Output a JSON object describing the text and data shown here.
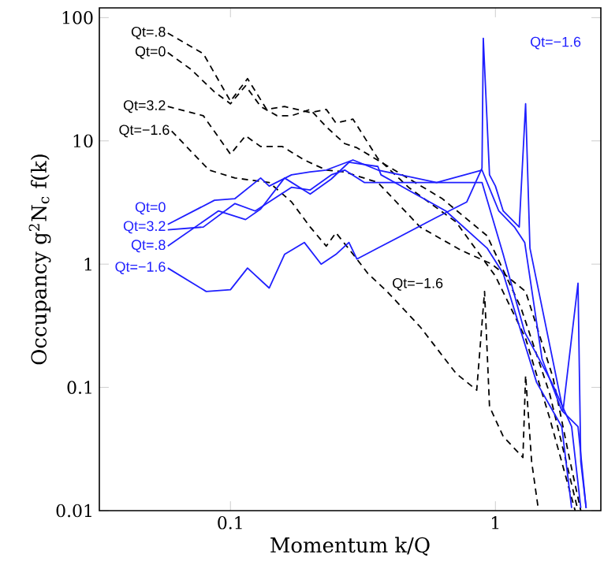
{
  "chart_data": {
    "type": "line",
    "xlabel": "Momentum k/Q",
    "ylabel": "Occupancy g$^{2}$N$_{c}$ f(k)",
    "log": "xy",
    "xlim": [
      0.032,
      2.5
    ],
    "ylim": [
      0.01,
      120
    ],
    "xticks": [
      0.1,
      1
    ],
    "yticks": [
      0.01,
      0.1,
      1,
      10,
      100
    ],
    "series": [
      {
        "name": "Qt=.8",
        "color": "#000000",
        "line_style": "dashed",
        "x": [
          0.058,
          0.079,
          0.1,
          0.116,
          0.137,
          0.16,
          0.2,
          0.23,
          0.25,
          0.29,
          0.36,
          0.47,
          0.71,
          1.0,
          1.3,
          1.6,
          2.0
        ],
        "values": [
          75,
          51,
          21,
          32,
          18,
          19,
          17,
          18,
          14,
          15,
          7.2,
          4.2,
          2.2,
          0.8,
          0.25,
          0.057,
          0.01
        ]
      },
      {
        "name": "Qt=0",
        "color": "#000000",
        "line_style": "dashed",
        "x": [
          0.058,
          0.071,
          0.087,
          0.1,
          0.114,
          0.13,
          0.15,
          0.17,
          0.2,
          0.23,
          0.27,
          0.3,
          0.63,
          0.93,
          1.25,
          1.6,
          2.05
        ],
        "values": [
          52,
          38,
          25,
          20,
          28,
          19,
          16,
          16,
          18,
          13,
          9.5,
          8.8,
          3.4,
          1.7,
          0.44,
          0.09,
          0.01
        ]
      },
      {
        "name": "Qt=3.2",
        "color": "#000000",
        "line_style": "dashed",
        "x": [
          0.058,
          0.079,
          0.1,
          0.114,
          0.13,
          0.157,
          0.19,
          0.23,
          0.27,
          0.36,
          0.52,
          0.74,
          0.97,
          1.3,
          1.65,
          1.9,
          2.1
        ],
        "values": [
          19,
          16,
          7.8,
          11,
          9,
          9,
          7,
          5.8,
          5.6,
          4.6,
          2.0,
          1.3,
          1.0,
          0.6,
          0.12,
          0.027,
          0.01
        ]
      },
      {
        "name": "Qt=−1.6",
        "color": "#000000",
        "line_style": "dashed",
        "x": [
          0.06,
          0.083,
          0.104,
          0.14,
          0.17,
          0.2,
          0.23,
          0.25,
          0.3,
          0.33,
          0.39,
          0.52,
          0.71,
          0.85,
          0.91,
          0.95,
          1.07,
          1.27,
          1.3,
          1.37,
          1.45
        ],
        "values": [
          12,
          5.8,
          5,
          4.6,
          3.2,
          2.0,
          1.4,
          1.8,
          1.1,
          0.84,
          0.6,
          0.31,
          0.13,
          0.095,
          0.6,
          0.07,
          0.04,
          0.027,
          0.125,
          0.025,
          0.0105
        ]
      },
      {
        "name": "Qt=0",
        "color": "#1f1fff",
        "line_style": "solid",
        "x": [
          0.058,
          0.087,
          0.104,
          0.13,
          0.14,
          0.17,
          0.2,
          0.23,
          0.29,
          0.36,
          0.6,
          0.89,
          1.03,
          1.18,
          1.29,
          1.5,
          1.78,
          2.05,
          2.2
        ],
        "values": [
          2.1,
          3.3,
          3.4,
          5,
          4.3,
          5.3,
          5.6,
          5.8,
          7,
          5.8,
          4.6,
          5.8,
          2.7,
          2.0,
          1.5,
          0.17,
          0.065,
          0.048,
          0.0105
        ]
      },
      {
        "name": "Qt=3.2",
        "color": "#1f1fff",
        "line_style": "solid",
        "x": [
          0.058,
          0.079,
          0.104,
          0.124,
          0.17,
          0.2,
          0.24,
          0.27,
          0.32,
          0.36,
          0.89,
          1.07,
          1.29,
          1.63,
          1.94,
          2.1
        ],
        "values": [
          1.9,
          2.0,
          3.1,
          2.7,
          4.2,
          4.0,
          5.3,
          5.8,
          4.6,
          4.6,
          4.6,
          1.2,
          0.28,
          0.11,
          0.048,
          0.0105
        ]
      },
      {
        "name": "Qt=.8",
        "color": "#1f1fff",
        "line_style": "solid",
        "x": [
          0.058,
          0.09,
          0.114,
          0.13,
          0.16,
          0.2,
          0.24,
          0.28,
          0.36,
          0.37,
          0.65,
          0.93,
          1.07,
          1.43,
          1.78,
          1.94
        ],
        "values": [
          1.4,
          2.7,
          2.3,
          2.8,
          5.0,
          3.7,
          4.9,
          6.7,
          6.2,
          5.3,
          2.7,
          1.35,
          0.84,
          0.11,
          0.048,
          0.0105
        ]
      },
      {
        "name": "Qt=−1.6",
        "color": "#1f1fff",
        "line_style": "solid",
        "x": [
          0.058,
          0.081,
          0.1,
          0.116,
          0.14,
          0.16,
          0.19,
          0.22,
          0.25,
          0.28,
          0.3,
          0.36,
          0.6,
          0.78,
          0.89,
          0.9,
          0.95,
          1.0,
          1.07,
          1.23,
          1.3,
          1.35,
          1.8,
          2.05,
          2.1,
          2.2
        ],
        "values": [
          0.93,
          0.6,
          0.62,
          0.93,
          0.64,
          1.2,
          1.5,
          1.0,
          1.2,
          1.5,
          1.1,
          1.35,
          2.4,
          3.2,
          6.0,
          68,
          5.3,
          4.3,
          2.7,
          2.0,
          20,
          1.35,
          0.065,
          0.7,
          0.025,
          0.0105
        ]
      }
    ],
    "annotations": [
      "Qt=−1.6",
      "Qt=−1.6"
    ]
  }
}
